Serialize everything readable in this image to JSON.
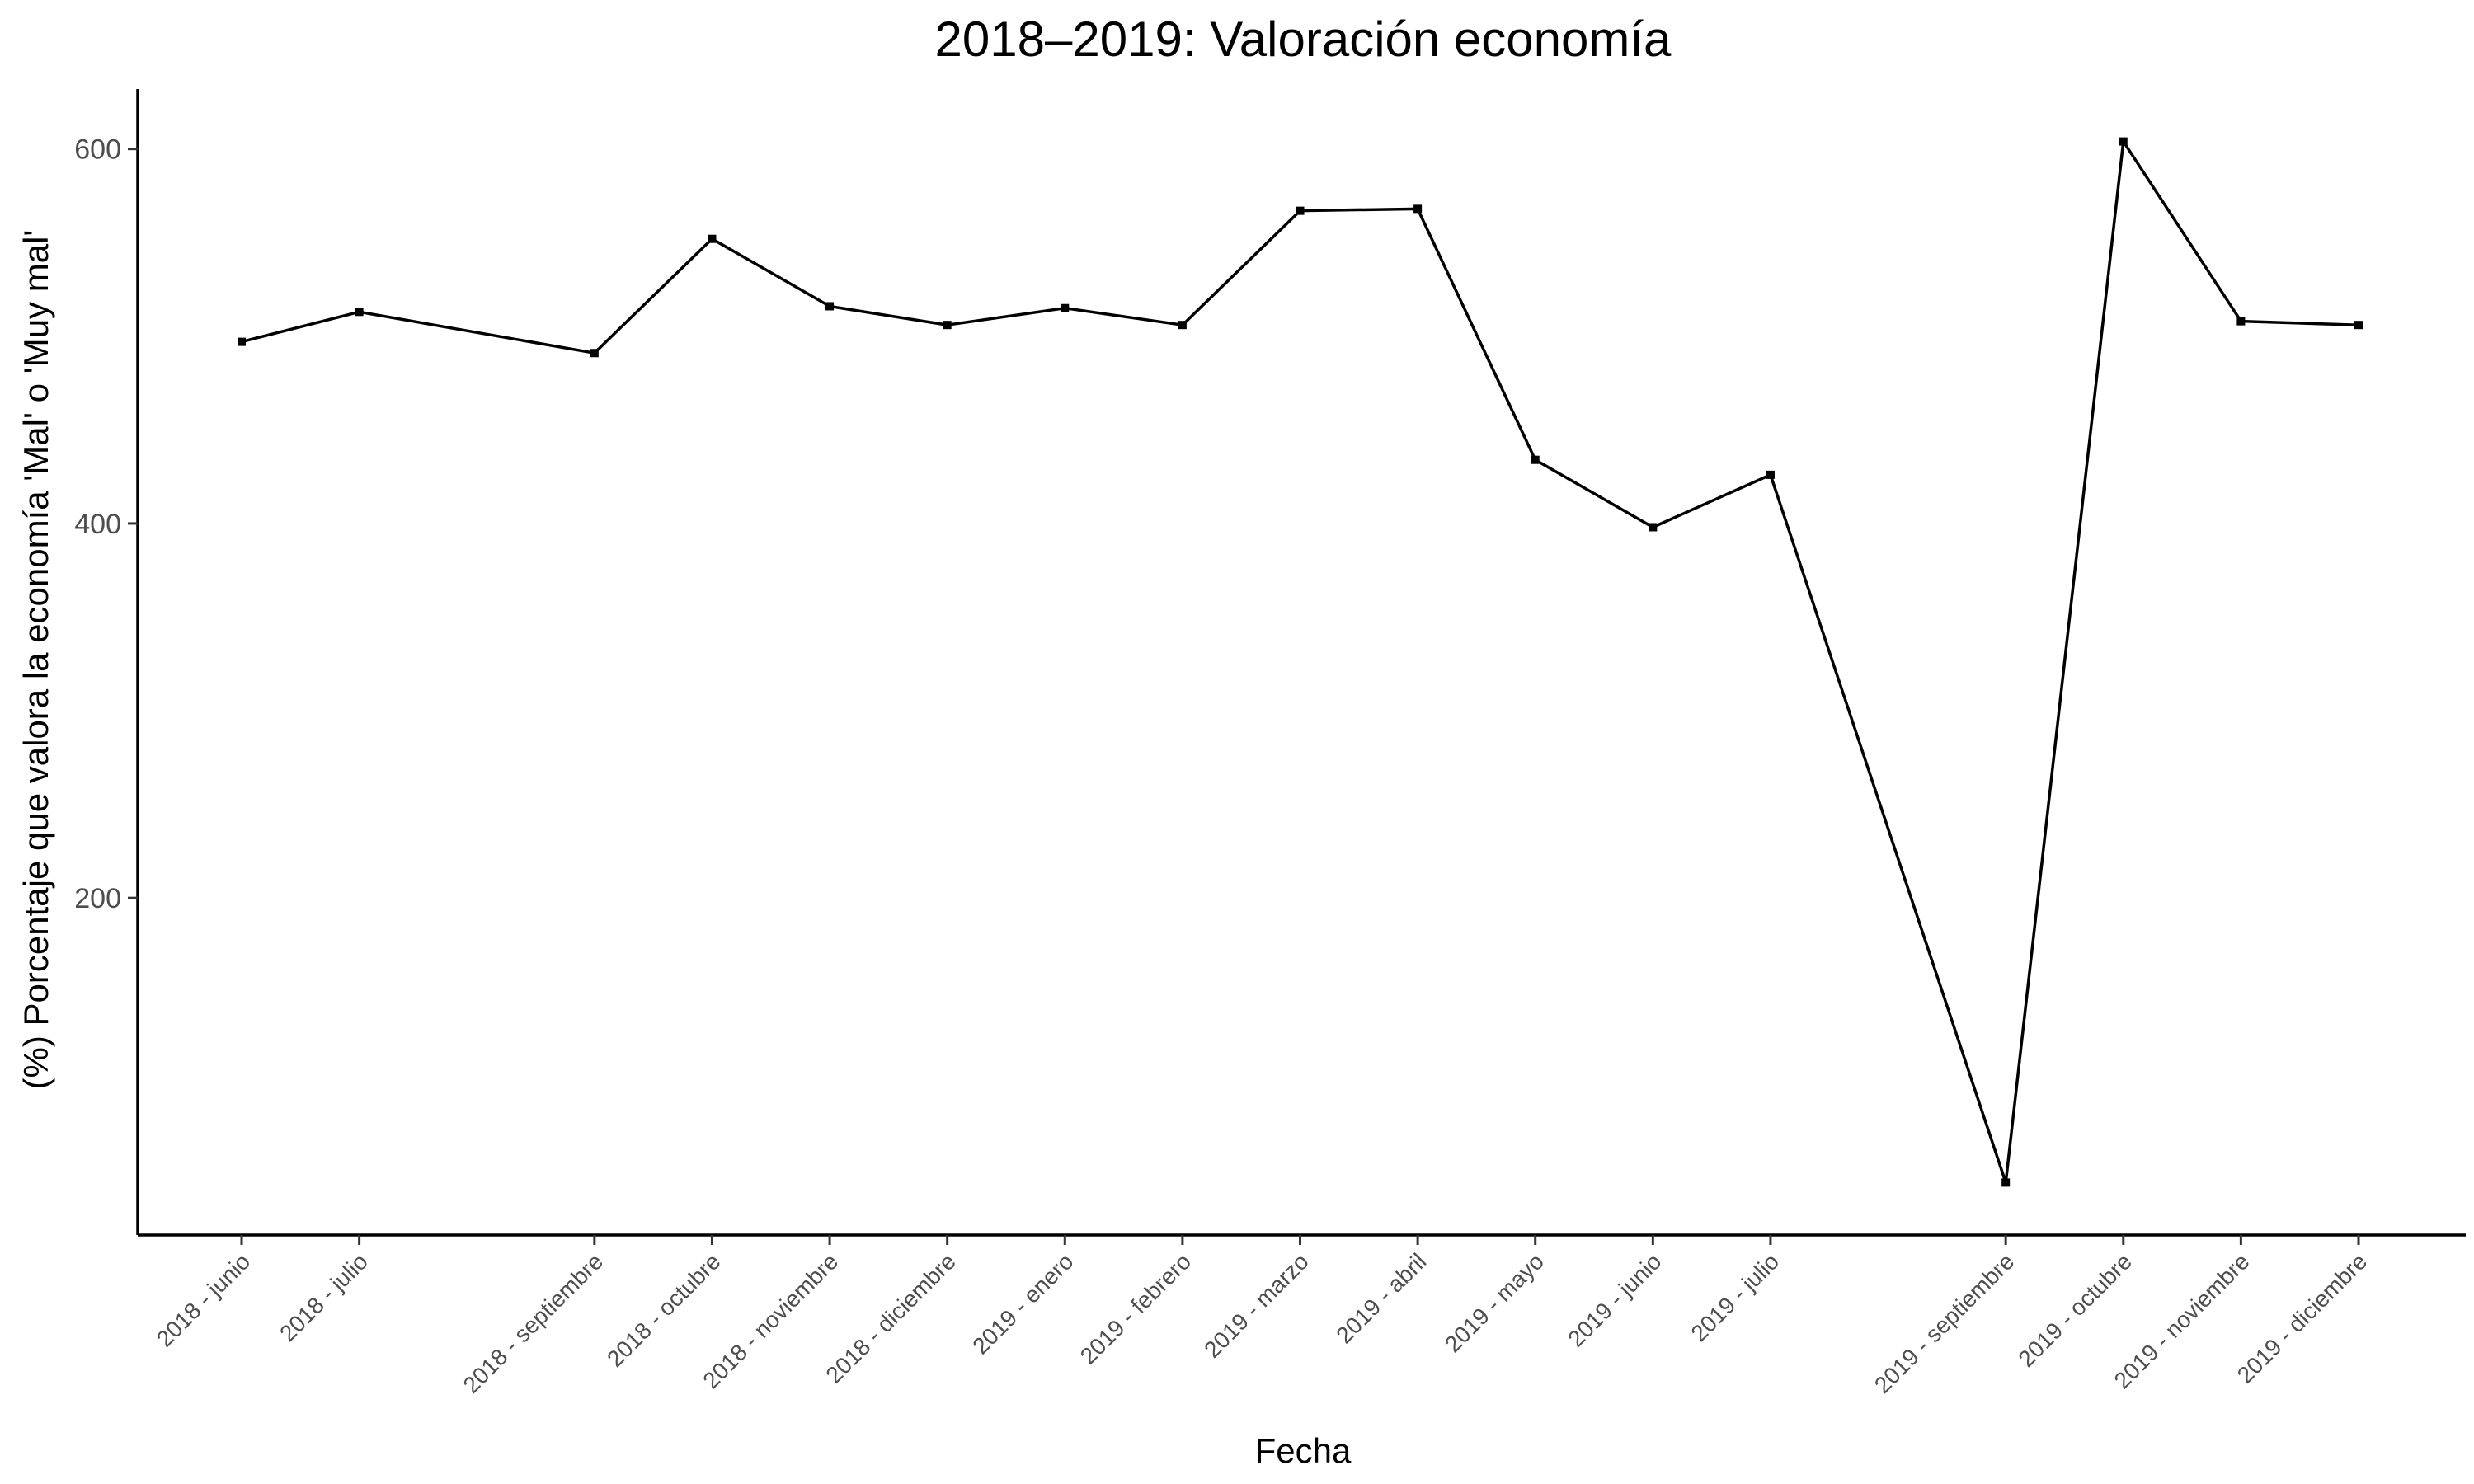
{
  "chart_data": {
    "type": "line",
    "title": "2018–2019: Valoración economía",
    "xlabel": "Fecha",
    "ylabel": "(%) Porcentaje que valora la economía 'Mal' o 'Muy mal'",
    "y_ticks": [
      200,
      400,
      600
    ],
    "ylim": [
      20,
      632
    ],
    "grid": false,
    "x": [
      {
        "date": "2018-06",
        "label": "2018 - junio"
      },
      {
        "date": "2018-07",
        "label": "2018 - julio"
      },
      {
        "date": "2018-09",
        "label": "2018 - septiembre"
      },
      {
        "date": "2018-10",
        "label": "2018 - octubre"
      },
      {
        "date": "2018-11",
        "label": "2018 - noviembre"
      },
      {
        "date": "2018-12",
        "label": "2018 - diciembre"
      },
      {
        "date": "2019-01",
        "label": "2019 - enero"
      },
      {
        "date": "2019-02",
        "label": "2019 - febrero"
      },
      {
        "date": "2019-03",
        "label": "2019 - marzo"
      },
      {
        "date": "2019-04",
        "label": "2019 - abril"
      },
      {
        "date": "2019-05",
        "label": "2019 - mayo"
      },
      {
        "date": "2019-06",
        "label": "2019 - junio"
      },
      {
        "date": "2019-07",
        "label": "2019 - julio"
      },
      {
        "date": "2019-09",
        "label": "2019 - septiembre"
      },
      {
        "date": "2019-10",
        "label": "2019 - octubre"
      },
      {
        "date": "2019-11",
        "label": "2019 - noviembre"
      },
      {
        "date": "2019-12",
        "label": "2019 - diciembre"
      }
    ],
    "series": [
      {
        "values": [
          497,
          513,
          491,
          552,
          516,
          506,
          515,
          506,
          567,
          568,
          434,
          398,
          426,
          48,
          604,
          508,
          506
        ]
      }
    ],
    "line_color": "#000000"
  }
}
